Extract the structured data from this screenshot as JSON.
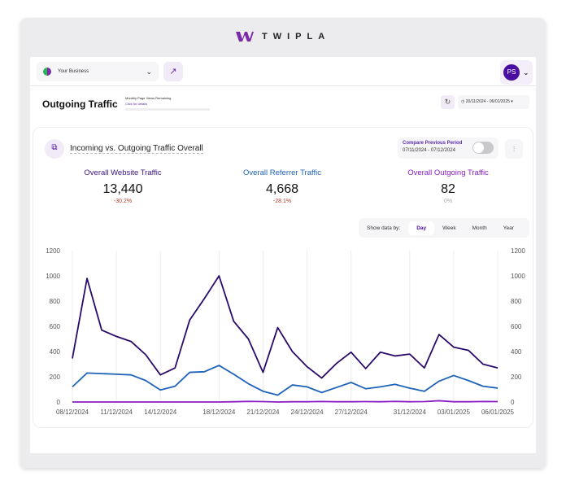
{
  "brand": {
    "name": "TWIPLA"
  },
  "topbar": {
    "business": "Your Business",
    "avatar": "PS"
  },
  "header": {
    "title": "Outgoing Traffic",
    "quota_label": "Monthly Page Views Remaining",
    "quota_link": "Click for details",
    "date_range": "20/11/2024 - 06/01/2025"
  },
  "card": {
    "title": "Incoming vs. Outgoing Traffic Overall",
    "compare_label": "Compare Previous Period",
    "compare_range": "07/11/2024 - 07/12/2024",
    "compare_enabled": false,
    "metrics": [
      {
        "label": "Overall Website Traffic",
        "value": "13,440",
        "change": "-30.2%",
        "color": "#3d1585",
        "change_color": "#b03a2e"
      },
      {
        "label": "Overall Referrer Traffic",
        "value": "4,668",
        "change": "-28.1%",
        "color": "#1e63b8",
        "change_color": "#b03a2e"
      },
      {
        "label": "Overall Outgoing Traffic",
        "value": "82",
        "change": "0%",
        "color": "#8a1fc2",
        "change_color": "#aaa"
      }
    ],
    "show_by_label": "Show data by:",
    "show_by": [
      "Day",
      "Week",
      "Month",
      "Year"
    ],
    "show_by_selected": "Day"
  },
  "chart_data": {
    "type": "line",
    "ylim": [
      0,
      1200
    ],
    "yticks": [
      0,
      200,
      400,
      600,
      800,
      1000,
      1200
    ],
    "grid": "vertical",
    "x": [
      "08/12/2024",
      "09/12/2024",
      "10/12/2024",
      "11/12/2024",
      "12/12/2024",
      "13/12/2024",
      "14/12/2024",
      "15/12/2024",
      "16/12/2024",
      "17/12/2024",
      "18/12/2024",
      "19/12/2024",
      "20/12/2024",
      "21/12/2024",
      "22/12/2024",
      "23/12/2024",
      "24/12/2024",
      "25/12/2024",
      "26/12/2024",
      "27/12/2024",
      "28/12/2024",
      "29/12/2024",
      "30/12/2024",
      "31/12/2024",
      "01/01/2025",
      "02/01/2025",
      "03/01/2025",
      "04/01/2025",
      "05/01/2025",
      "06/01/2025"
    ],
    "xtick_labels": [
      "08/12/2024",
      "11/12/2024",
      "14/12/2024",
      "18/12/2024",
      "21/12/2024",
      "24/12/2024",
      "27/12/2024",
      "31/12/2024",
      "03/01/2025",
      "06/01/2025"
    ],
    "series": [
      {
        "color": "#2a0a6b",
        "values": [
          345,
          980,
          570,
          520,
          480,
          375,
          215,
          270,
          650,
          820,
          1000,
          640,
          500,
          235,
          590,
          400,
          280,
          190,
          305,
          395,
          265,
          395,
          365,
          380,
          270,
          535,
          435,
          410,
          300,
          270
        ]
      },
      {
        "color": "#1e63b8",
        "values": [
          120,
          230,
          225,
          220,
          215,
          170,
          95,
          125,
          235,
          240,
          290,
          220,
          145,
          85,
          55,
          135,
          120,
          75,
          115,
          155,
          105,
          120,
          140,
          110,
          85,
          165,
          210,
          170,
          125,
          110
        ]
      },
      {
        "color": "#8a1fc2",
        "values": [
          0,
          0,
          0,
          0,
          0,
          0,
          0,
          0,
          0,
          0,
          0,
          2,
          5,
          3,
          0,
          2,
          2,
          4,
          2,
          2,
          3,
          2,
          5,
          2,
          3,
          10,
          2,
          2,
          4,
          3
        ]
      }
    ]
  }
}
